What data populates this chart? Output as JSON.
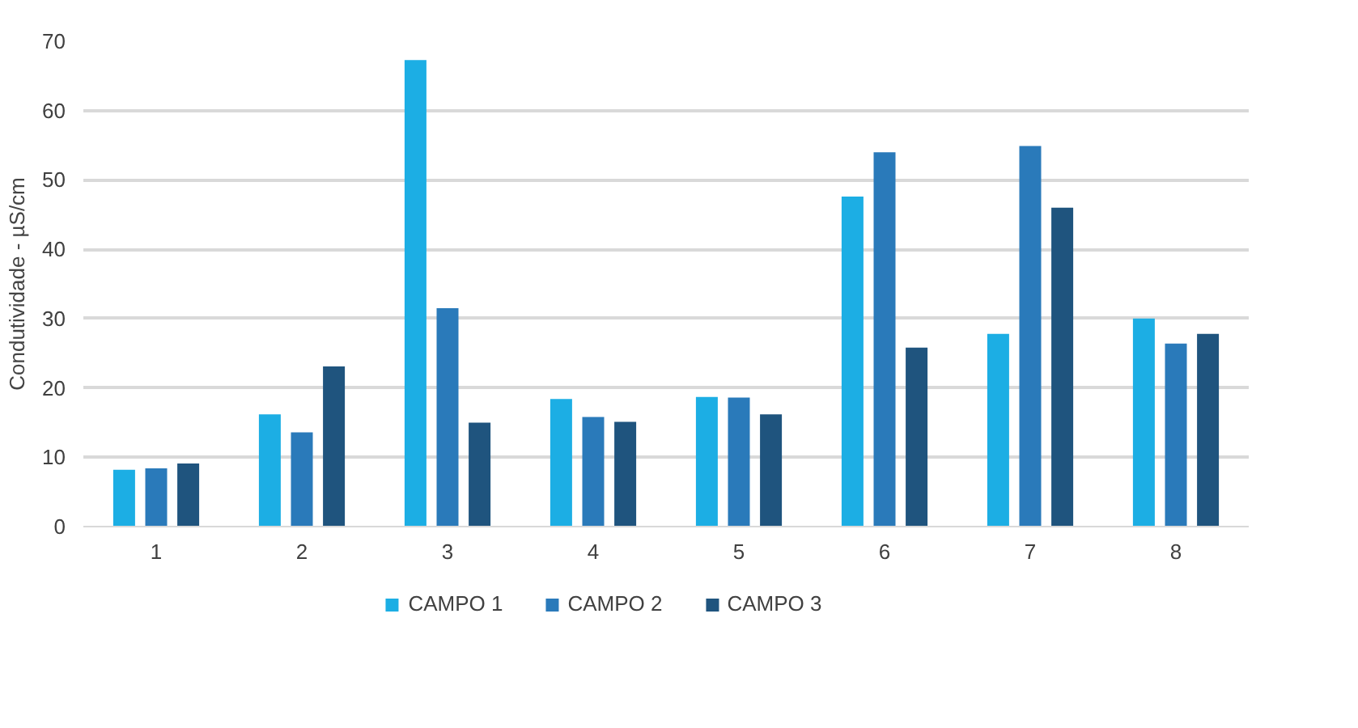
{
  "chart_data": {
    "type": "bar",
    "ylabel": "Condutividade - µS/cm",
    "categories": [
      "1",
      "2",
      "3",
      "4",
      "5",
      "6",
      "7",
      "8"
    ],
    "series": [
      {
        "name": "CAMPO 1",
        "color": "#1caee4",
        "values": [
          8.2,
          16.2,
          67.3,
          18.4,
          18.7,
          47.6,
          27.8,
          30.0
        ]
      },
      {
        "name": "CAMPO 2",
        "color": "#2a7aba",
        "values": [
          8.4,
          13.6,
          31.5,
          15.8,
          18.6,
          54.0,
          54.9,
          26.4
        ]
      },
      {
        "name": "CAMPO 3",
        "color": "#1f547e",
        "values": [
          9.1,
          23.1,
          15.0,
          15.1,
          16.2,
          25.8,
          46.0,
          27.8
        ]
      }
    ],
    "ylim": [
      0,
      70
    ],
    "yticks": [
      0,
      10,
      20,
      30,
      40,
      50,
      60,
      70
    ],
    "grid": "y",
    "legend": "bottom"
  }
}
